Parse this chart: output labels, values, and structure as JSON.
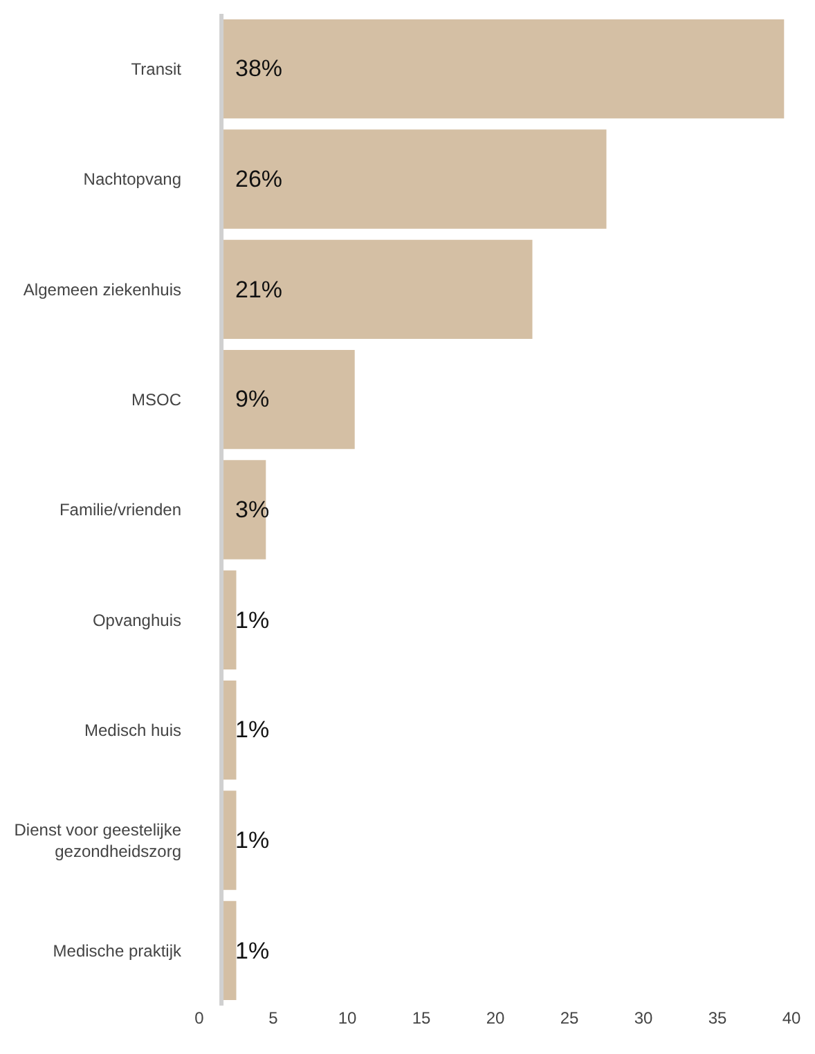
{
  "chart_data": {
    "type": "bar",
    "orientation": "horizontal",
    "categories": [
      "Transit",
      "Nachtopvang",
      "Algemeen ziekenhuis",
      "MSOC",
      "Familie/vrienden",
      "Opvanghuis",
      "Medisch huis",
      "Dienst voor geestelijke\ngezondheidszorg",
      "Medische praktijk"
    ],
    "values": [
      38,
      26,
      21,
      9,
      3,
      1,
      1,
      1,
      1
    ],
    "base": [
      1.5,
      1.5,
      1.5,
      1.5,
      1.5,
      1.5,
      1.5,
      1.5,
      1.5
    ],
    "value_labels": [
      "38%",
      "26%",
      "21%",
      "9%",
      "3%",
      "1%",
      "1%",
      "1%",
      "1%"
    ],
    "color": "#d4bfa4",
    "xlim": [
      0,
      40
    ],
    "xticks": [
      0,
      5,
      10,
      15,
      20,
      25,
      30,
      35,
      40
    ],
    "legend": false
  }
}
